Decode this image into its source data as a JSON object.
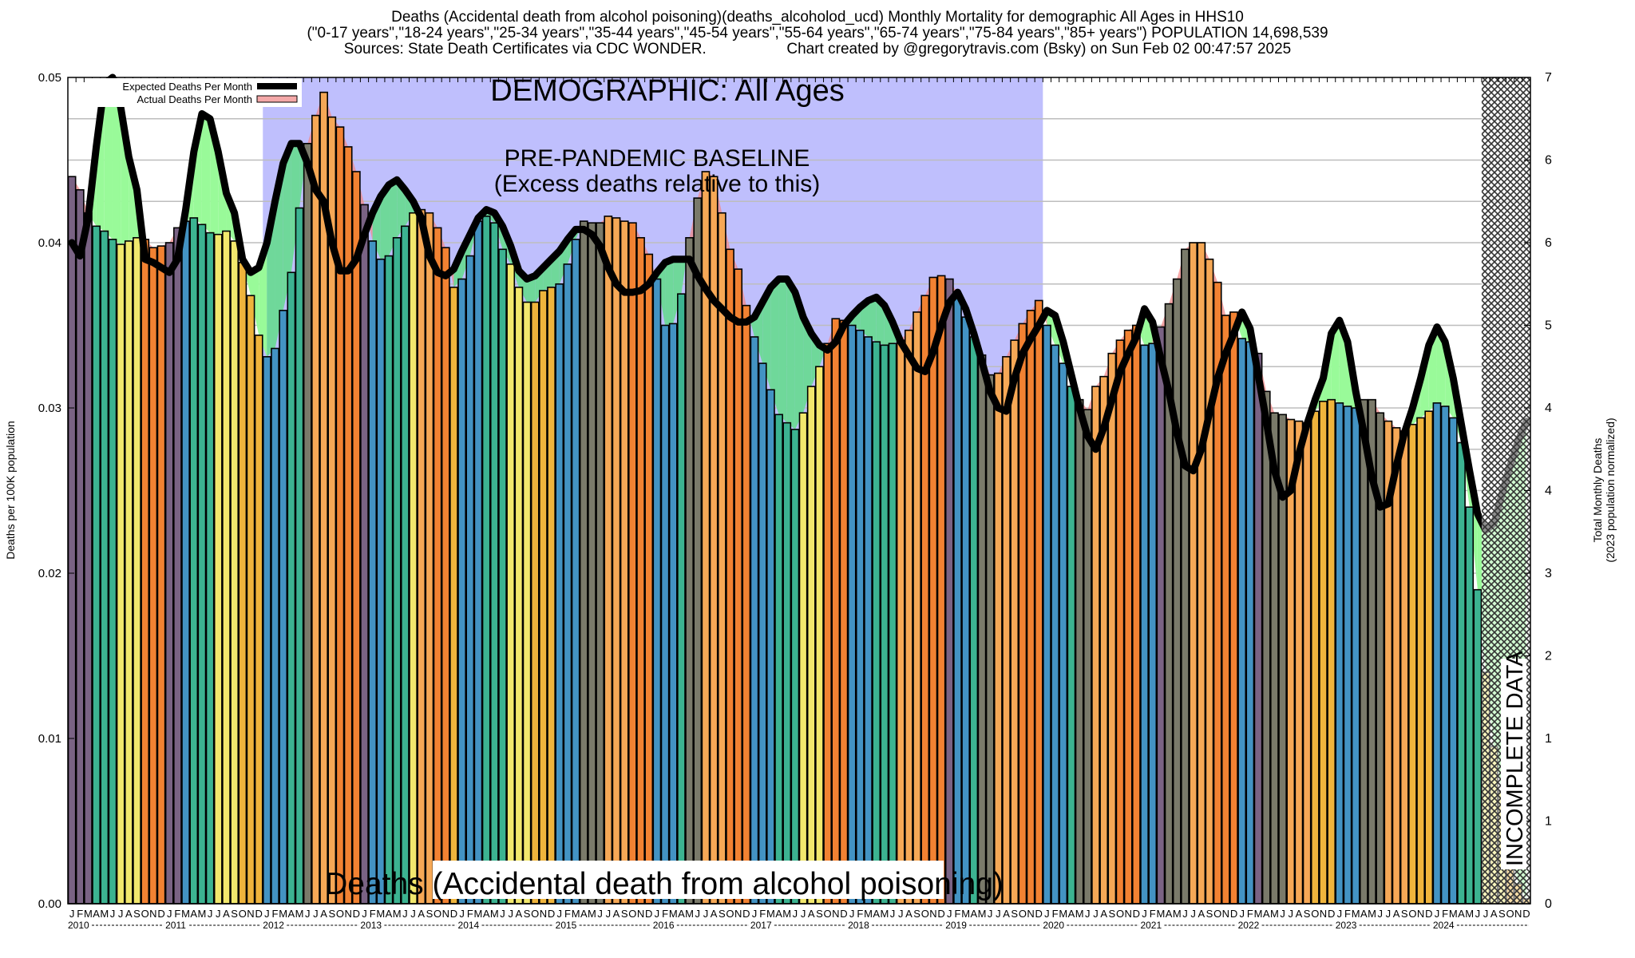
{
  "header": {
    "title_line1": "Deaths (Accidental death from alcohol poisoning)(deaths_alcoholod_ucd) Monthly Mortality for demographic All Ages in HHS10",
    "title_line2": "(\"0-17 years\",\"18-24 years\",\"25-34 years\",\"35-44 years\",\"45-54 years\",\"55-64 years\",\"65-74 years\",\"75-84 years\",\"85+ years\") POPULATION 14,698,539",
    "sources": "Sources: State Death Certificates via CDC WONDER.",
    "credit": "Chart created by @gregorytravis.com (Bsky) on Sun Feb 02 00:47:57 2025"
  },
  "chart_data": {
    "type": "bar",
    "title": "Deaths (Accidental death from alcohol poisoning)(deaths_alcoholod_ucd) Monthly Mortality for demographic All Ages in HHS10",
    "ylabel": "Deaths per 100K population",
    "y2label_line1": "Total Monthly Deaths",
    "y2label_line2": "(2023 population normalized)",
    "ylim": [
      0,
      0.05
    ],
    "yticks": [
      "0.00",
      "0.01",
      "0.02",
      "0.03",
      "0.04",
      "0.05"
    ],
    "y2ticks": [
      "0",
      "1",
      "1",
      "2",
      "3",
      "4",
      "4",
      "5",
      "6",
      "6",
      "7"
    ],
    "y2ticks_values": [
      0,
      0.005,
      0.01,
      0.015,
      0.02,
      0.025,
      0.03,
      0.035,
      0.04,
      0.045,
      0.05
    ],
    "grid": true,
    "legend_position": "top-left",
    "legend": [
      {
        "label": "Expected Deaths Per Month",
        "color": "#000000"
      },
      {
        "label": "Actual Deaths Per Month",
        "color": "#f4a8a8"
      }
    ],
    "month_letters": [
      "J",
      "F",
      "M",
      "A",
      "M",
      "J",
      "J",
      "A",
      "S",
      "O",
      "N",
      "D"
    ],
    "years": [
      "2010",
      "2011",
      "2012",
      "2013",
      "2014",
      "2015",
      "2016",
      "2017",
      "2018",
      "2019",
      "2020",
      "2021",
      "2022",
      "2023",
      "2024"
    ],
    "season_colors": [
      "#4393c3",
      "#3cb391",
      "#f2e86d",
      "#efb43c"
    ],
    "annotations": {
      "demographic": "DEMOGRAPHIC: All Ages",
      "baseline_line1": "PRE-PANDEMIC BASELINE",
      "baseline_line2": "(Excess deaths relative to this)",
      "baseline_range": [
        "2012-01",
        "2019-12"
      ],
      "incomplete": "INCOMPLETE DATA",
      "incomplete_from": "2024-07",
      "bottom_label": "Deaths (Accidental death from alcohol poisoning)"
    },
    "series": [
      {
        "name": "Actual Deaths Per Month",
        "values": [
          0.044,
          0.0432,
          0.0418,
          0.041,
          0.0407,
          0.0402,
          0.0399,
          0.0401,
          0.0403,
          0.0402,
          0.0397,
          0.0398,
          0.04,
          0.0409,
          0.0413,
          0.0415,
          0.0411,
          0.0406,
          0.0405,
          0.0407,
          0.0401,
          0.0388,
          0.0368,
          0.0344,
          0.0331,
          0.0336,
          0.0359,
          0.0382,
          0.0421,
          0.046,
          0.0477,
          0.0491,
          0.0476,
          0.047,
          0.0458,
          0.0443,
          0.0423,
          0.0401,
          0.039,
          0.0392,
          0.0403,
          0.041,
          0.0418,
          0.042,
          0.0418,
          0.0409,
          0.0397,
          0.0373,
          0.0378,
          0.0392,
          0.0413,
          0.0416,
          0.0412,
          0.0396,
          0.0387,
          0.0373,
          0.0364,
          0.0364,
          0.0371,
          0.0373,
          0.0375,
          0.0387,
          0.0402,
          0.0413,
          0.0412,
          0.0412,
          0.0416,
          0.0415,
          0.0413,
          0.0412,
          0.0403,
          0.0393,
          0.0378,
          0.035,
          0.0351,
          0.0369,
          0.0403,
          0.0427,
          0.0443,
          0.044,
          0.0418,
          0.0396,
          0.0384,
          0.0362,
          0.0343,
          0.0327,
          0.0311,
          0.0296,
          0.0291,
          0.0287,
          0.0297,
          0.0313,
          0.0325,
          0.0339,
          0.0354,
          0.0353,
          0.035,
          0.0347,
          0.0343,
          0.034,
          0.0338,
          0.0339,
          0.0341,
          0.0347,
          0.0358,
          0.0368,
          0.0379,
          0.038,
          0.0378,
          0.0369,
          0.0355,
          0.0343,
          0.0332,
          0.032,
          0.0321,
          0.0331,
          0.0341,
          0.0351,
          0.0359,
          0.0365,
          0.035,
          0.0338,
          0.0327,
          0.0313,
          0.0305,
          0.0299,
          0.0313,
          0.0319,
          0.0333,
          0.0341,
          0.0347,
          0.035,
          0.0338,
          0.0339,
          0.0349,
          0.0363,
          0.0378,
          0.0396,
          0.04,
          0.04,
          0.039,
          0.0376,
          0.0356,
          0.0358,
          0.0342,
          0.034,
          0.0333,
          0.031,
          0.0297,
          0.0296,
          0.0293,
          0.0292,
          0.0291,
          0.0298,
          0.0304,
          0.0305,
          0.0303,
          0.0301,
          0.03,
          0.0305,
          0.0305,
          0.0297,
          0.0292,
          0.0288,
          0.0286,
          0.029,
          0.0294,
          0.0298,
          0.0303,
          0.0301,
          0.0294,
          0.0279,
          0.024,
          0.019,
          0.014,
          0.0095,
          0.0068,
          0.0036,
          0.0012,
          0.0003
        ]
      },
      {
        "name": "Expected Deaths Per Month",
        "values": [
          0.04,
          0.0392,
          0.0415,
          0.0458,
          0.0496,
          0.05,
          0.0482,
          0.0452,
          0.0432,
          0.039,
          0.0388,
          0.0385,
          0.0382,
          0.039,
          0.042,
          0.0455,
          0.0478,
          0.0475,
          0.0455,
          0.043,
          0.0418,
          0.039,
          0.0382,
          0.0385,
          0.04,
          0.0425,
          0.0448,
          0.046,
          0.046,
          0.0448,
          0.0432,
          0.0425,
          0.04,
          0.0383,
          0.0383,
          0.039,
          0.0405,
          0.0418,
          0.0428,
          0.0435,
          0.0438,
          0.0432,
          0.0425,
          0.0415,
          0.0392,
          0.0382,
          0.038,
          0.0384,
          0.0395,
          0.0405,
          0.0415,
          0.042,
          0.0418,
          0.041,
          0.0398,
          0.0383,
          0.0378,
          0.038,
          0.0385,
          0.039,
          0.0395,
          0.0402,
          0.0408,
          0.0408,
          0.0405,
          0.0398,
          0.0385,
          0.0375,
          0.037,
          0.037,
          0.0371,
          0.0375,
          0.0382,
          0.0388,
          0.039,
          0.039,
          0.039,
          0.038,
          0.0372,
          0.0365,
          0.036,
          0.0355,
          0.0352,
          0.0352,
          0.0355,
          0.0364,
          0.0373,
          0.0378,
          0.0378,
          0.037,
          0.0355,
          0.0345,
          0.0338,
          0.0335,
          0.034,
          0.035,
          0.0356,
          0.0361,
          0.0365,
          0.0367,
          0.0362,
          0.0352,
          0.034,
          0.0332,
          0.0324,
          0.0322,
          0.0334,
          0.035,
          0.0364,
          0.037,
          0.036,
          0.0345,
          0.0328,
          0.031,
          0.03,
          0.0298,
          0.0318,
          0.0333,
          0.0342,
          0.035,
          0.0359,
          0.0356,
          0.034,
          0.032,
          0.03,
          0.0283,
          0.0275,
          0.0288,
          0.0305,
          0.0322,
          0.0333,
          0.0343,
          0.036,
          0.0352,
          0.033,
          0.031,
          0.0285,
          0.0265,
          0.0262,
          0.0275,
          0.0297,
          0.0318,
          0.0333,
          0.0345,
          0.0358,
          0.0348,
          0.032,
          0.0292,
          0.0262,
          0.0246,
          0.025,
          0.0272,
          0.029,
          0.0305,
          0.0318,
          0.0345,
          0.0353,
          0.034,
          0.031,
          0.0285,
          0.0258,
          0.024,
          0.0242,
          0.0265,
          0.0285,
          0.03,
          0.0318,
          0.0338,
          0.0349,
          0.034,
          0.0318,
          0.029,
          0.0262,
          0.0236,
          0.0226,
          0.023,
          0.0248,
          0.0265,
          0.028,
          0.0292
        ]
      }
    ]
  }
}
